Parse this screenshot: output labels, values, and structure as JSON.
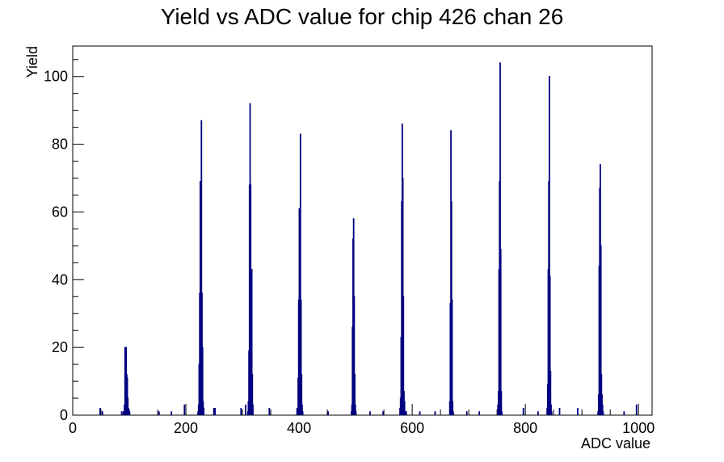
{
  "chart_data": {
    "type": "bar",
    "title": "Yield vs ADC value for chip 426 chan 26",
    "xlabel": "ADC value",
    "ylabel": "Yield",
    "xlim": [
      0,
      1024
    ],
    "ylim": [
      0,
      109
    ],
    "x_ticks": [
      0,
      200,
      400,
      600,
      800,
      1000
    ],
    "y_ticks": [
      0,
      20,
      40,
      60,
      80,
      100
    ],
    "grid": false,
    "legend": "none",
    "line_color": "#000080",
    "series": [
      {
        "points": [
          [
            48,
            2
          ],
          [
            52,
            1
          ],
          [
            86,
            1
          ],
          [
            89,
            1
          ],
          [
            91,
            3
          ],
          [
            92,
            20
          ],
          [
            93,
            18
          ],
          [
            94,
            20
          ],
          [
            95,
            12
          ],
          [
            96,
            11
          ],
          [
            97,
            5
          ],
          [
            98,
            2
          ],
          [
            100,
            1
          ],
          [
            152,
            1
          ],
          [
            174,
            1
          ],
          [
            197,
            3
          ],
          [
            221,
            1
          ],
          [
            222,
            3
          ],
          [
            223,
            15
          ],
          [
            224,
            36
          ],
          [
            225,
            69
          ],
          [
            226,
            55
          ],
          [
            227,
            87
          ],
          [
            228,
            36
          ],
          [
            229,
            20
          ],
          [
            230,
            4
          ],
          [
            231,
            2
          ],
          [
            249,
            2
          ],
          [
            251,
            2
          ],
          [
            297,
            2
          ],
          [
            305,
            3
          ],
          [
            309,
            1
          ],
          [
            310,
            4
          ],
          [
            311,
            19
          ],
          [
            312,
            68
          ],
          [
            313,
            92
          ],
          [
            314,
            68
          ],
          [
            315,
            9
          ],
          [
            316,
            43
          ],
          [
            317,
            12
          ],
          [
            318,
            3
          ],
          [
            347,
            2
          ],
          [
            396,
            2
          ],
          [
            397,
            2
          ],
          [
            398,
            11
          ],
          [
            399,
            34
          ],
          [
            400,
            61
          ],
          [
            401,
            46
          ],
          [
            402,
            83
          ],
          [
            403,
            34
          ],
          [
            404,
            12
          ],
          [
            405,
            3
          ],
          [
            406,
            1
          ],
          [
            451,
            1
          ],
          [
            492,
            1
          ],
          [
            493,
            3
          ],
          [
            494,
            26
          ],
          [
            495,
            52
          ],
          [
            496,
            58
          ],
          [
            497,
            35
          ],
          [
            498,
            12
          ],
          [
            499,
            3
          ],
          [
            500,
            1
          ],
          [
            525,
            1
          ],
          [
            548,
            1
          ],
          [
            578,
            2
          ],
          [
            579,
            5
          ],
          [
            580,
            23
          ],
          [
            581,
            63
          ],
          [
            582,
            86
          ],
          [
            583,
            70
          ],
          [
            584,
            35
          ],
          [
            585,
            7
          ],
          [
            586,
            4
          ],
          [
            587,
            1
          ],
          [
            589,
            1
          ],
          [
            613,
            1
          ],
          [
            640,
            1
          ],
          [
            666,
            4
          ],
          [
            667,
            33
          ],
          [
            668,
            84
          ],
          [
            669,
            63
          ],
          [
            670,
            34
          ],
          [
            671,
            4
          ],
          [
            672,
            1
          ],
          [
            696,
            1
          ],
          [
            718,
            1
          ],
          [
            751,
            3
          ],
          [
            752,
            7
          ],
          [
            753,
            43
          ],
          [
            754,
            69
          ],
          [
            755,
            104
          ],
          [
            756,
            49
          ],
          [
            757,
            7
          ],
          [
            758,
            1
          ],
          [
            796,
            2
          ],
          [
            822,
            1
          ],
          [
            838,
            2
          ],
          [
            839,
            9
          ],
          [
            840,
            43
          ],
          [
            841,
            69
          ],
          [
            842,
            100
          ],
          [
            843,
            41
          ],
          [
            844,
            13
          ],
          [
            845,
            3
          ],
          [
            846,
            1
          ],
          [
            860,
            2
          ],
          [
            892,
            2
          ],
          [
            928,
            1
          ],
          [
            929,
            6
          ],
          [
            930,
            44
          ],
          [
            931,
            67
          ],
          [
            932,
            74
          ],
          [
            933,
            50
          ],
          [
            934,
            12
          ],
          [
            935,
            6
          ],
          [
            936,
            3
          ],
          [
            937,
            1
          ],
          [
            974,
            1
          ],
          [
            996,
            3
          ]
        ]
      }
    ]
  }
}
